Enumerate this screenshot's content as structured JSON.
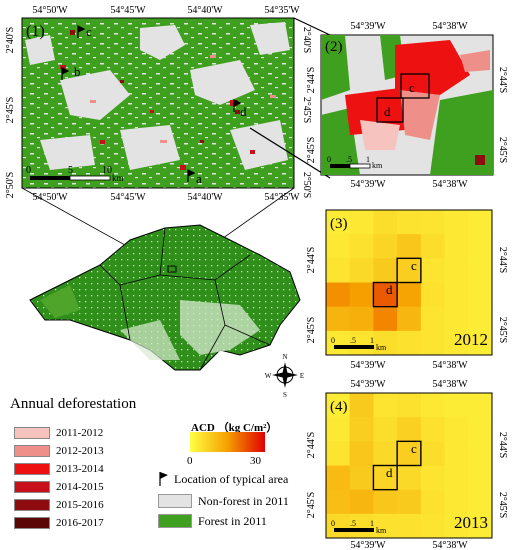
{
  "panel1": {
    "label": "(1)",
    "top_ticks": [
      "54°50'W",
      "54°45'W",
      "54°40'W",
      "54°35'W"
    ],
    "bottom_ticks": [
      "54°50'W",
      "54°45'W",
      "54°40'W",
      "54°35'W"
    ],
    "left_ticks": [
      "2°40'S",
      "2°45'S",
      "2°50'S"
    ],
    "right_ticks": [
      "2°40'S",
      "2°45'S",
      "2°50'S"
    ],
    "scale": {
      "labels": [
        "0",
        "5",
        "10"
      ],
      "unit": "km"
    },
    "area_labels": [
      "a",
      "b",
      "c",
      "d"
    ]
  },
  "panel2": {
    "label": "(2)",
    "top_ticks": [
      "54°39'W",
      "54°38'W"
    ],
    "bottom_ticks": [
      "54°39'W",
      "54°38'W"
    ],
    "left_ticks": [
      "2°44'S",
      "2°45'S"
    ],
    "right_ticks": [
      "2°44'S",
      "2°45'S"
    ],
    "scale": {
      "labels": [
        "0",
        ".5",
        "1"
      ],
      "unit": "km"
    },
    "box_labels": [
      "c",
      "d"
    ]
  },
  "panel3": {
    "label": "(3)",
    "year": "2012",
    "bottom_ticks": [
      "54°39'W",
      "54°38'W"
    ],
    "left_ticks": [
      "2°44'S",
      "2°45'S"
    ],
    "right_ticks": [
      "2°44'S",
      "2°45'S"
    ],
    "scale": {
      "labels": [
        "0",
        ".5",
        "1"
      ],
      "unit": "km"
    },
    "box_labels": [
      "c",
      "d"
    ]
  },
  "panel4": {
    "label": "(4)",
    "year": "2013",
    "top_ticks": [
      "54°39'W",
      "54°38'W"
    ],
    "bottom_ticks": [
      "54°39'W",
      "54°38'W"
    ],
    "left_ticks": [
      "2°44'S",
      "2°45'S"
    ],
    "right_ticks": [
      "2°44'S",
      "2°45'S"
    ],
    "scale": {
      "labels": [
        "0",
        ".5",
        "1"
      ],
      "unit": "km"
    },
    "box_labels": [
      "c",
      "d"
    ]
  },
  "compass": {
    "n": "N",
    "s": "S",
    "e": "E",
    "w": "W"
  },
  "legend": {
    "title": "Annual deforestation",
    "items": [
      {
        "label": "2011-2012",
        "color": "#f6c3bf"
      },
      {
        "label": "2012-2013",
        "color": "#ef8f8a"
      },
      {
        "label": "2013-2014",
        "color": "#ee1111"
      },
      {
        "label": "2014-2015",
        "color": "#c8101a"
      },
      {
        "label": "2015-2016",
        "color": "#8e0c10"
      },
      {
        "label": "2016-2017",
        "color": "#5a0606"
      }
    ],
    "acd_title": "ACD （kg C/m²）",
    "acd_min": "0",
    "acd_max": "30",
    "typical_area": "Location of typical area",
    "non_forest": "Non-forest in 2011",
    "forest": "Forest in 2011",
    "non_forest_color": "#e3e3e3",
    "forest_color": "#3f9f1f"
  }
}
